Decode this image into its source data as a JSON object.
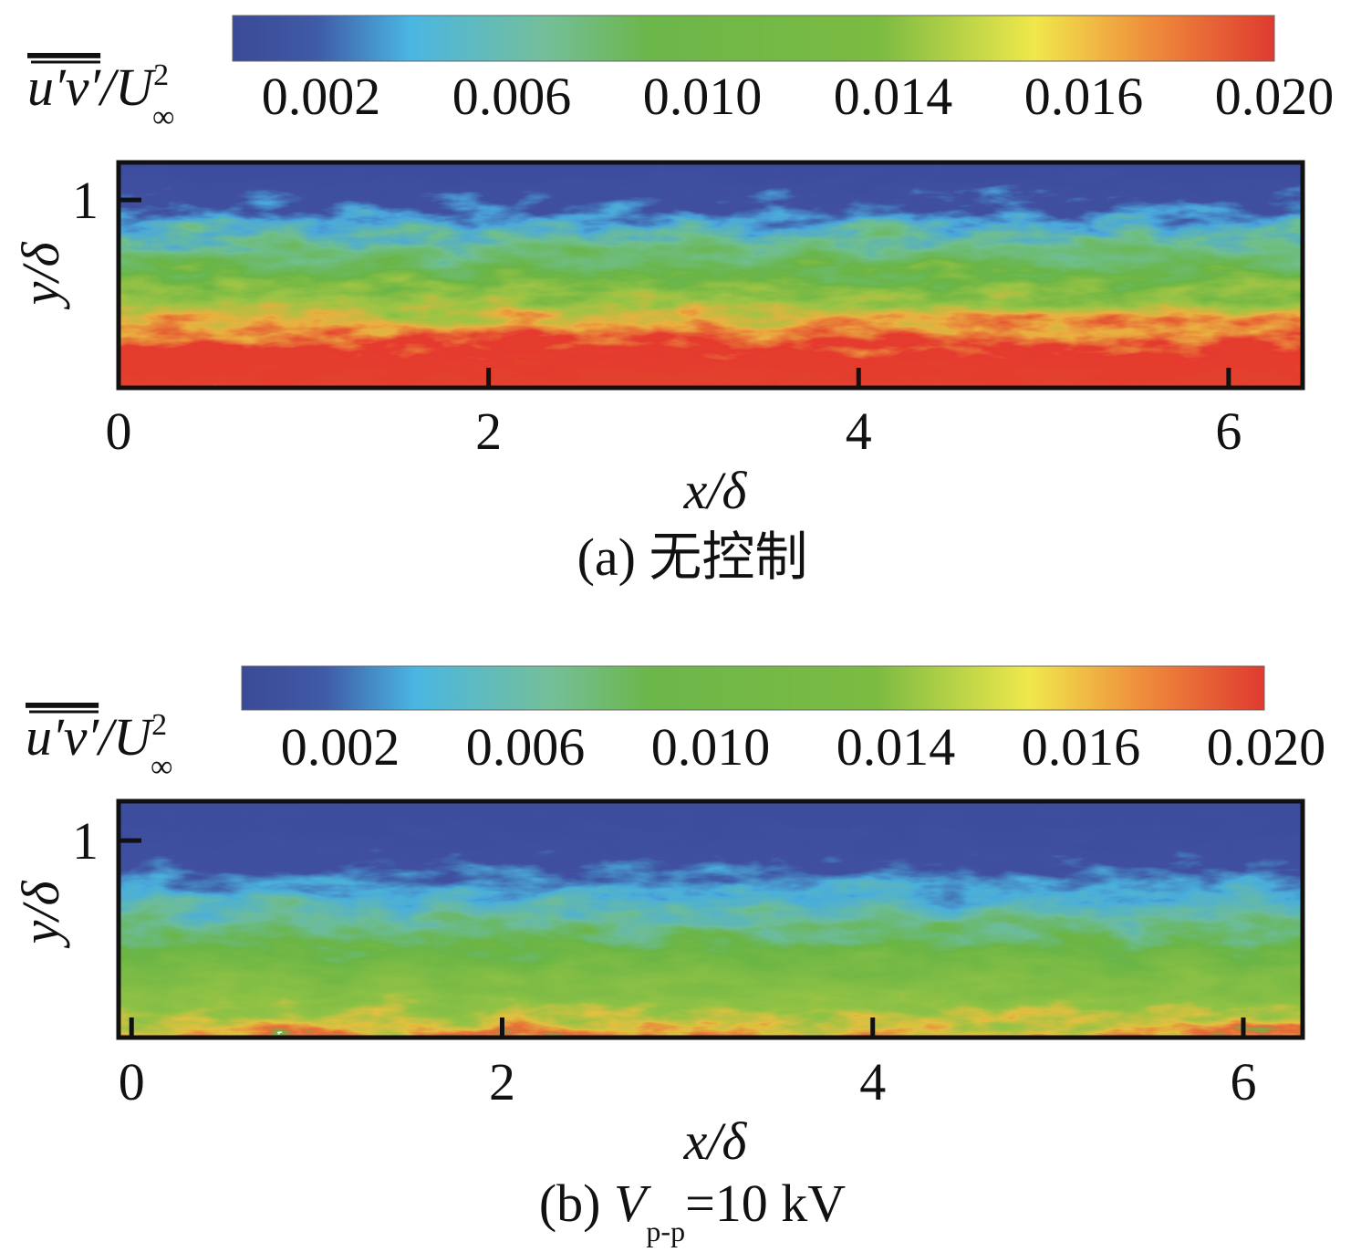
{
  "chart_data": [
    {
      "type": "heatmap",
      "colorbar_label": [
        "u′v′",
        "/U",
        "2",
        "∞"
      ],
      "colorbar_ticks": [
        0.002,
        0.006,
        {
          "value": 0.01,
          "label": "0.010"
        },
        0.014,
        0.016,
        {
          "value": 0.02,
          "label": "0.020"
        }
      ],
      "xlabel": "x/δ",
      "ylabel": "y/δ",
      "xlim": [
        0,
        6.4
      ],
      "xticks": [
        0,
        2,
        4,
        6
      ],
      "ylim": [
        0,
        1.2
      ],
      "yticks": [
        1
      ],
      "caption": [
        "(a) 无控制"
      ]
    },
    {
      "type": "heatmap",
      "colorbar_label": [
        "u′v′",
        "/U",
        "2",
        "∞"
      ],
      "colorbar_ticks": [
        0.002,
        0.006,
        {
          "value": 0.01,
          "label": "0.010"
        },
        0.014,
        0.016,
        {
          "value": 0.02,
          "label": "0.020"
        }
      ],
      "xlabel": "x/δ",
      "ylabel": "y/δ",
      "xlim": [
        -0.07,
        6.32
      ],
      "xticks": [
        0,
        2,
        4,
        6
      ],
      "ylim": [
        0,
        1.2
      ],
      "yticks": [
        1
      ],
      "caption": [
        "(b) ",
        "V",
        "p-p",
        "=10 kV"
      ]
    }
  ]
}
